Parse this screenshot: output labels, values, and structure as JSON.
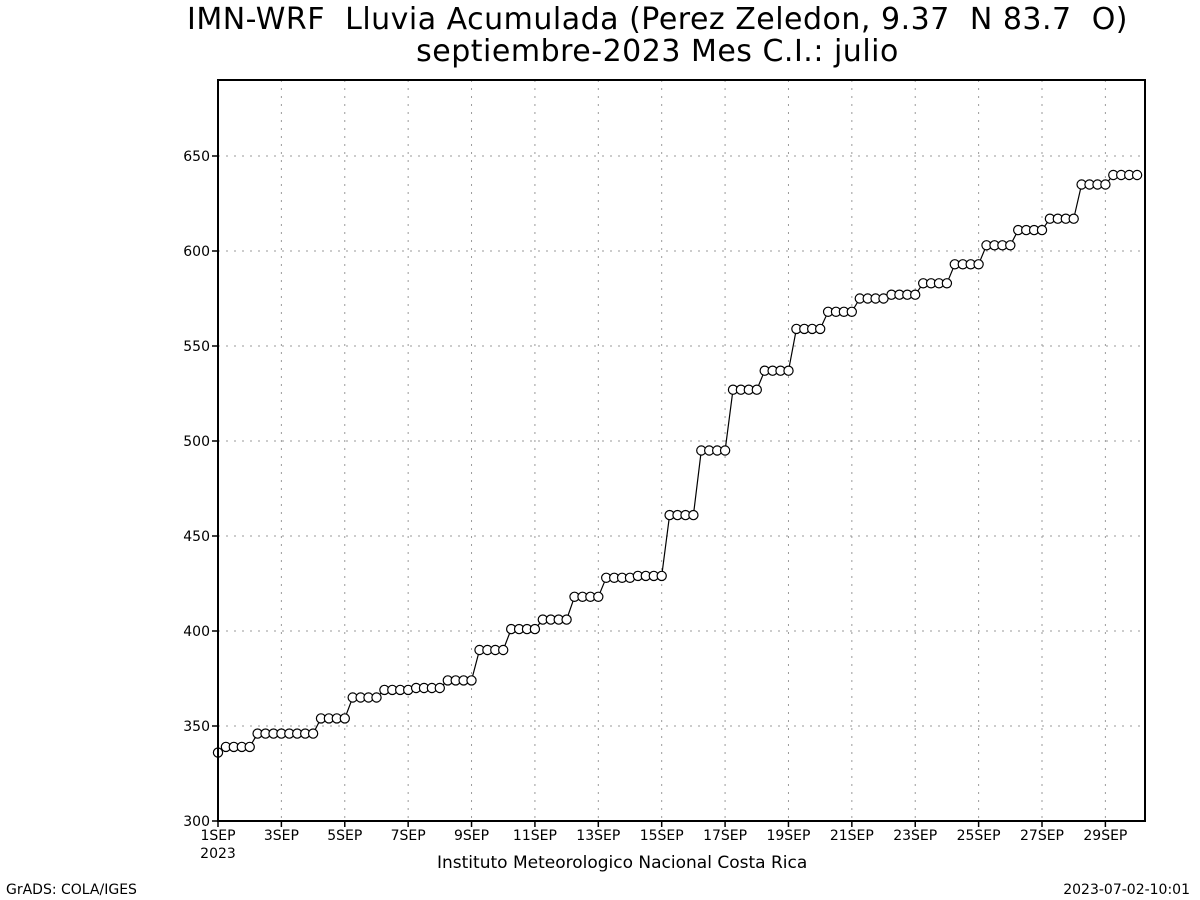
{
  "title_line1": "IMN-WRF  Lluvia Acumulada (Perez Zeledon, 9.37  N 83.7  O)",
  "title_line2": "septiembre-2023 Mes C.I.: julio",
  "footer": {
    "credit": "Instituto Meteorologico Nacional Costa Rica",
    "software": "GrADS: COLA/IGES",
    "timestamp": "2023-07-02-10:01"
  },
  "chart_data": {
    "type": "line",
    "title": "IMN-WRF  Lluvia Acumulada (Perez Zeledon, 9.37  N 83.7  O)",
    "subtitle": "septiembre-2023 Mes C.I.: julio",
    "xlabel": "",
    "ylabel": "",
    "grid": true,
    "marker": "open-circle",
    "line_color": "#000000",
    "ylim": [
      300,
      690
    ],
    "yticks": [
      300,
      350,
      400,
      450,
      500,
      550,
      600,
      650
    ],
    "xlim": [
      0,
      29.25
    ],
    "xticks": [
      {
        "day": 0,
        "label": "1SEP",
        "sublabel": "2023"
      },
      {
        "day": 2,
        "label": "3SEP"
      },
      {
        "day": 4,
        "label": "5SEP"
      },
      {
        "day": 6,
        "label": "7SEP"
      },
      {
        "day": 8,
        "label": "9SEP"
      },
      {
        "day": 10,
        "label": "11SEP"
      },
      {
        "day": 12,
        "label": "13SEP"
      },
      {
        "day": 14,
        "label": "15SEP"
      },
      {
        "day": 16,
        "label": "17SEP"
      },
      {
        "day": 18,
        "label": "19SEP"
      },
      {
        "day": 20,
        "label": "21SEP"
      },
      {
        "day": 22,
        "label": "23SEP"
      },
      {
        "day": 24,
        "label": "25SEP"
      },
      {
        "day": 26,
        "label": "27SEP"
      },
      {
        "day": 28,
        "label": "29SEP"
      }
    ],
    "x_step_days": 0.25,
    "values": [
      336,
      339,
      339,
      339,
      339,
      346,
      346,
      346,
      346,
      346,
      346,
      346,
      346,
      354,
      354,
      354,
      354,
      365,
      365,
      365,
      365,
      369,
      369,
      369,
      369,
      370,
      370,
      370,
      370,
      374,
      374,
      374,
      374,
      390,
      390,
      390,
      390,
      401,
      401,
      401,
      401,
      406,
      406,
      406,
      406,
      418,
      418,
      418,
      418,
      428,
      428,
      428,
      428,
      429,
      429,
      429,
      429,
      461,
      461,
      461,
      461,
      495,
      495,
      495,
      495,
      527,
      527,
      527,
      527,
      537,
      537,
      537,
      537,
      559,
      559,
      559,
      559,
      568,
      568,
      568,
      568,
      575,
      575,
      575,
      575,
      577,
      577,
      577,
      577,
      583,
      583,
      583,
      583,
      593,
      593,
      593,
      593,
      603,
      603,
      603,
      603,
      611,
      611,
      611,
      611,
      617,
      617,
      617,
      617,
      635,
      635,
      635,
      635,
      640,
      640,
      640,
      640
    ]
  }
}
